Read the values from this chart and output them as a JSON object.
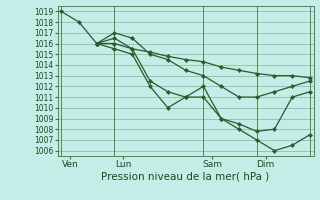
{
  "title": "Pression niveau de la mer( hPa )",
  "ylabel_values": [
    1006,
    1007,
    1008,
    1009,
    1010,
    1011,
    1012,
    1013,
    1014,
    1015,
    1016,
    1017,
    1018,
    1019
  ],
  "ylim": [
    1005.5,
    1019.5
  ],
  "background_color": "#c6ece8",
  "grid_color": "#3a7a3a",
  "line_color": "#2a5a2a",
  "xtick_labels": [
    "Ven",
    "Lun",
    "Sam",
    "Dim"
  ],
  "xtick_positions": [
    0.5,
    3.5,
    8.5,
    11.5
  ],
  "vline_positions": [
    0,
    3,
    8,
    11,
    14
  ],
  "series1_x": [
    0,
    1,
    2,
    3,
    4,
    5,
    6,
    7,
    8,
    9,
    10,
    11,
    12,
    13,
    14
  ],
  "series1_y": [
    1019.0,
    1018.0,
    1016.0,
    1016.0,
    1015.5,
    1015.2,
    1014.8,
    1014.5,
    1014.3,
    1013.8,
    1013.5,
    1013.2,
    1013.0,
    1013.0,
    1012.8
  ],
  "series2_x": [
    2,
    3,
    4,
    5,
    6,
    7,
    8,
    9,
    10,
    11,
    12,
    13,
    14
  ],
  "series2_y": [
    1016.0,
    1017.0,
    1016.5,
    1015.0,
    1014.5,
    1013.5,
    1013.0,
    1012.0,
    1011.0,
    1011.0,
    1011.5,
    1012.0,
    1012.5
  ],
  "series3_x": [
    2,
    3,
    4,
    5,
    6,
    7,
    8,
    9,
    10,
    11,
    12,
    13,
    14
  ],
  "series3_y": [
    1016.0,
    1016.5,
    1015.5,
    1012.5,
    1011.5,
    1011.0,
    1011.0,
    1009.0,
    1008.5,
    1007.8,
    1008.0,
    1011.0,
    1011.5
  ],
  "series4_x": [
    2,
    3,
    4,
    5,
    6,
    7,
    8,
    9,
    10,
    11,
    12,
    13,
    14
  ],
  "series4_y": [
    1016.0,
    1015.5,
    1015.0,
    1012.0,
    1010.0,
    1011.0,
    1012.0,
    1009.0,
    1008.0,
    1007.0,
    1006.0,
    1006.5,
    1007.5
  ],
  "xlim": [
    -0.2,
    14.2
  ],
  "figsize": [
    3.2,
    2.0
  ],
  "dpi": 100
}
